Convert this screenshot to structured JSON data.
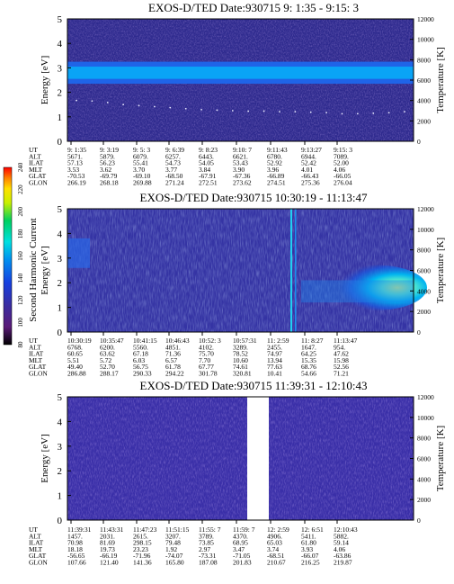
{
  "chart_data": [
    {
      "type": "heatmap",
      "title": "EXOS-D/TED   Date:930715   9: 1:35 - 9:15: 3",
      "ylabel": "Energy [eV]",
      "y2label": "Temperature [K]",
      "ylim": [
        0,
        5
      ],
      "y2lim": [
        0,
        12000
      ],
      "yticks": [
        "0",
        "1",
        "2",
        "3",
        "4",
        "5"
      ],
      "y2ticks": [
        "0",
        "2000",
        "4000",
        "6000",
        "8000",
        "10000",
        "12000"
      ],
      "bands": [
        {
          "from": 2.35,
          "to": 3.25,
          "level": "high"
        },
        {
          "from": 2.55,
          "to": 3.05,
          "level": "peak"
        }
      ],
      "temperature_trace_K": [
        4000,
        3950,
        3800,
        3600,
        3500,
        3400,
        3300,
        3200,
        3100,
        3050,
        3000,
        2950,
        2950,
        2900,
        2900,
        2850,
        2800,
        2700,
        2700,
        2750,
        2800,
        2900
      ],
      "orbit": {
        "row_labels": [
          "UT",
          "ALT",
          "ILAT",
          "MLT",
          "GLAT",
          "GLON"
        ],
        "columns": [
          [
            "9: 1:35",
            "5671.",
            "57.13",
            "3.53",
            "-70.53",
            "266.19"
          ],
          [
            "9: 3:19",
            "5879.",
            "56.23",
            "3.62",
            "-69.79",
            "268.18"
          ],
          [
            "9: 5: 3",
            "6079.",
            "55.41",
            "3.70",
            "-69.10",
            "269.88"
          ],
          [
            "9: 6:39",
            "6257.",
            "54.73",
            "3.77",
            "-68.50",
            "271.24"
          ],
          [
            "9: 8:23",
            "6443.",
            "54.05",
            "3.84",
            "-67.91",
            "272.51"
          ],
          [
            "9:10: 7",
            "6621.",
            "53.43",
            "3.90",
            "-67.36",
            "273.62"
          ],
          [
            "9:11:43",
            "6780.",
            "52.92",
            "3.96",
            "-66.89",
            "274.51"
          ],
          [
            "9:13:27",
            "6944.",
            "52.42",
            "4.01",
            "-66.43",
            "275.36"
          ],
          [
            "9:15: 3",
            "7089.",
            "52.00",
            "4.06",
            "-66.05",
            "276.04"
          ]
        ]
      }
    },
    {
      "type": "heatmap",
      "title": "EXOS-D/TED   Date:930715   10:30:19 - 11:13:47",
      "ylabel": "Energy [eV]",
      "y2label": "Temperature [K]",
      "ylim": [
        0,
        5
      ],
      "y2lim": [
        0,
        12000
      ],
      "yticks": [
        "0",
        "1",
        "2",
        "3",
        "4",
        "5"
      ],
      "y2ticks": [
        "0",
        "2000",
        "4000",
        "6000",
        "8000",
        "10000",
        "12000"
      ],
      "colorbar": {
        "label": "Second Harmonic Current",
        "ticks": [
          "80",
          "100",
          "120",
          "140",
          "160",
          "180",
          "200",
          "220",
          "240"
        ]
      },
      "orbit": {
        "row_labels": [
          "UT",
          "ALT",
          "ILAT",
          "MLT",
          "GLAT",
          "GLON"
        ],
        "columns": [
          [
            "10:30:19",
            "6768.",
            "60.65",
            "5.51",
            "49.40",
            "286.88"
          ],
          [
            "10:35:47",
            "6200.",
            "63.62",
            "5.72",
            "52.70",
            "288.17"
          ],
          [
            "10:41:15",
            "5560.",
            "67.18",
            "6.03",
            "56.75",
            "290.33"
          ],
          [
            "10:46:43",
            "4851.",
            "71.36",
            "6.57",
            "61.78",
            "294.22"
          ],
          [
            "10:52: 3",
            "4102.",
            "75.70",
            "7.70",
            "67.77",
            "301.78"
          ],
          [
            "10:57:31",
            "3289.",
            "78.52",
            "10.60",
            "74.61",
            "320.81"
          ],
          [
            "11: 2:59",
            "2455.",
            "74.97",
            "13.94",
            "77.63",
            "10.41"
          ],
          [
            "11: 8:27",
            "1647.",
            "64.25",
            "15.35",
            "68.76",
            "54.66"
          ],
          [
            "11:13:47",
            "954.",
            "47.62",
            "15.98",
            "52.56",
            "71.21"
          ]
        ]
      }
    },
    {
      "type": "heatmap",
      "title": "EXOS-D/TED   Date:930715   11:39:31 - 12:10:43",
      "ylabel": "Energy [eV]",
      "y2label": "Temperature [K]",
      "ylim": [
        0,
        5
      ],
      "y2lim": [
        0,
        12000
      ],
      "yticks": [
        "0",
        "1",
        "2",
        "3",
        "4",
        "5"
      ],
      "y2ticks": [
        "0",
        "2000",
        "4000",
        "6000",
        "8000",
        "10000",
        "12000"
      ],
      "orbit": {
        "row_labels": [
          "UT",
          "ALT",
          "ILAT",
          "MLT",
          "GLAT",
          "GLON"
        ],
        "columns": [
          [
            "11:39:31",
            "1457.",
            "70.98",
            "18.18",
            "-56.65",
            "107.66"
          ],
          [
            "11:43:31",
            "2031.",
            "81.69",
            "19.73",
            "-66.19",
            "121.40"
          ],
          [
            "11:47:23",
            "2615.",
            "298.15",
            "23.23",
            "-71.96",
            "141.36"
          ],
          [
            "11:51:15",
            "3207.",
            "79.48",
            "1.92",
            "-74.07",
            "165.80"
          ],
          [
            "11:55: 7",
            "3789.",
            "73.85",
            "2.97",
            "-73.31",
            "187.08"
          ],
          [
            "11:59: 7",
            "4370.",
            "68.95",
            "3.47",
            "-71.05",
            "201.83"
          ],
          [
            "12: 2:59",
            "4906.",
            "65.03",
            "3.74",
            "-68.51",
            "210.67"
          ],
          [
            "12: 6:51",
            "5411.",
            "61.80",
            "3.93",
            "-66.07",
            "216.25"
          ],
          [
            "12:10:43",
            "5882.",
            "59.14",
            "4.06",
            "-63.86",
            "219.87"
          ]
        ]
      }
    }
  ]
}
